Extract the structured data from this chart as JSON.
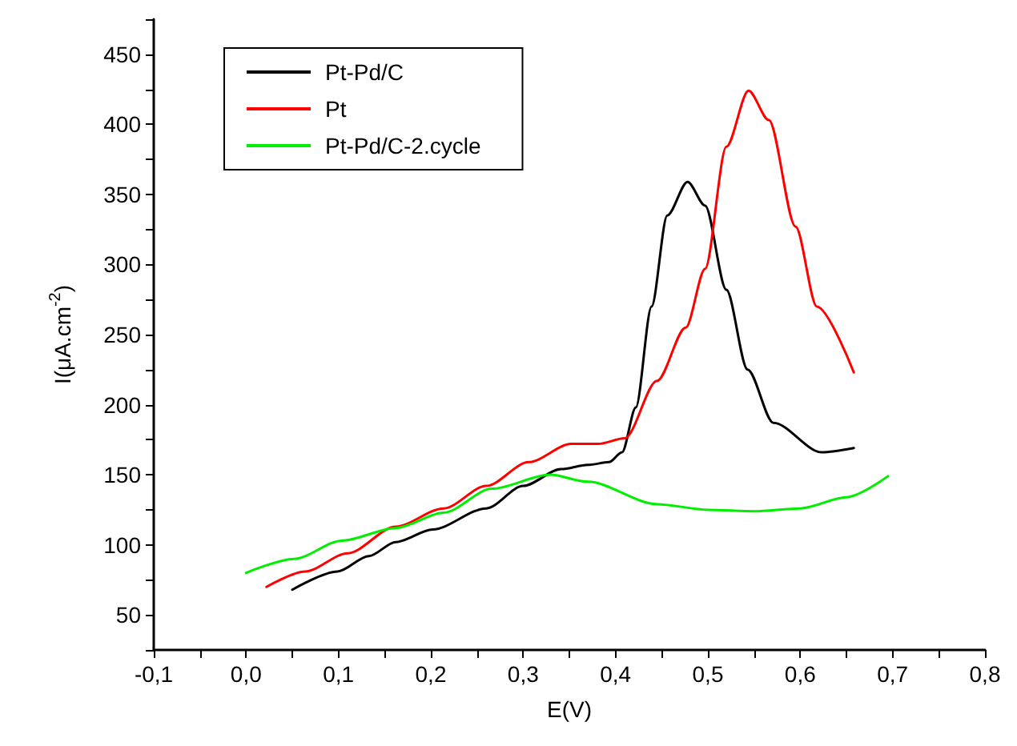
{
  "chart_data": {
    "type": "line",
    "xlabel": "E(V)",
    "ylabel": "I(μA.cm$^{-2}$)",
    "xlim": [
      -0.1,
      0.8
    ],
    "xticks": [
      {
        "value": -0.1,
        "label": "-0,1"
      },
      {
        "value": -0.05,
        "label": null
      },
      {
        "value": 0,
        "label": "0,0"
      },
      {
        "value": 0.05,
        "label": null
      },
      {
        "value": 0.1,
        "label": "0,1"
      },
      {
        "value": 0.15,
        "label": null
      },
      {
        "value": 0.2,
        "label": "0,2"
      },
      {
        "value": 0.25,
        "label": null
      },
      {
        "value": 0.3,
        "label": "0,3"
      },
      {
        "value": 0.35,
        "label": null
      },
      {
        "value": 0.4,
        "label": "0,4"
      },
      {
        "value": 0.45,
        "label": null
      },
      {
        "value": 0.5,
        "label": "0,5"
      },
      {
        "value": 0.55,
        "label": null
      },
      {
        "value": 0.6,
        "label": "0,6"
      },
      {
        "value": 0.65,
        "label": null
      },
      {
        "value": 0.7,
        "label": "0,7"
      },
      {
        "value": 0.75,
        "label": null
      },
      {
        "value": 0.8,
        "label": "0,8"
      }
    ],
    "ylim": [
      25,
      475
    ],
    "yticks": [
      {
        "value": 25,
        "label": null
      },
      50,
      {
        "value": 75,
        "label": null
      },
      100,
      {
        "value": 125,
        "label": null
      },
      150,
      {
        "value": 175,
        "label": null
      },
      200,
      {
        "value": 225,
        "label": null
      },
      250,
      {
        "value": 275,
        "label": null
      },
      300,
      {
        "value": 325,
        "label": null
      },
      350,
      {
        "value": 375,
        "label": null
      },
      400,
      {
        "value": 425,
        "label": null
      },
      450,
      {
        "value": 475,
        "label": null
      }
    ],
    "grid": false,
    "legend": "top left",
    "marker": "none",
    "line_style": "solid",
    "series": [
      {
        "name": "Pt-Pd/C",
        "color": "#000000",
        "x": [
          0.05,
          0.099,
          0.133,
          0.162,
          0.202,
          0.26,
          0.3,
          0.341,
          0.37,
          0.393,
          0.407,
          0.422,
          0.439,
          0.456,
          0.478,
          0.497,
          0.52,
          0.543,
          0.571,
          0.623,
          0.658
        ],
        "values": [
          68,
          81,
          92,
          102,
          111,
          126,
          142,
          154,
          157,
          159,
          166,
          198,
          270,
          335,
          359,
          342,
          282,
          225,
          187,
          166,
          169
        ]
      },
      {
        "name": "Pt",
        "color": "#ff0000",
        "x": [
          0.022,
          0.064,
          0.11,
          0.162,
          0.214,
          0.26,
          0.306,
          0.352,
          0.381,
          0.41,
          0.445,
          0.476,
          0.497,
          0.52,
          0.544,
          0.566,
          0.595,
          0.618,
          0.658
        ],
        "values": [
          70,
          81,
          94,
          113,
          126,
          142,
          159,
          172,
          172,
          176,
          217,
          255,
          297,
          384,
          424,
          403,
          327,
          270,
          223
        ]
      },
      {
        "name": "Pt-Pd/C-2.cycle",
        "color": "#00ee00",
        "x": [
          0.0,
          0.052,
          0.104,
          0.162,
          0.214,
          0.266,
          0.329,
          0.37,
          0.445,
          0.5,
          0.55,
          0.6,
          0.65,
          0.695
        ],
        "values": [
          80,
          90,
          103,
          112,
          123,
          140,
          150,
          145,
          129,
          125,
          124,
          126,
          134,
          149
        ]
      }
    ]
  }
}
